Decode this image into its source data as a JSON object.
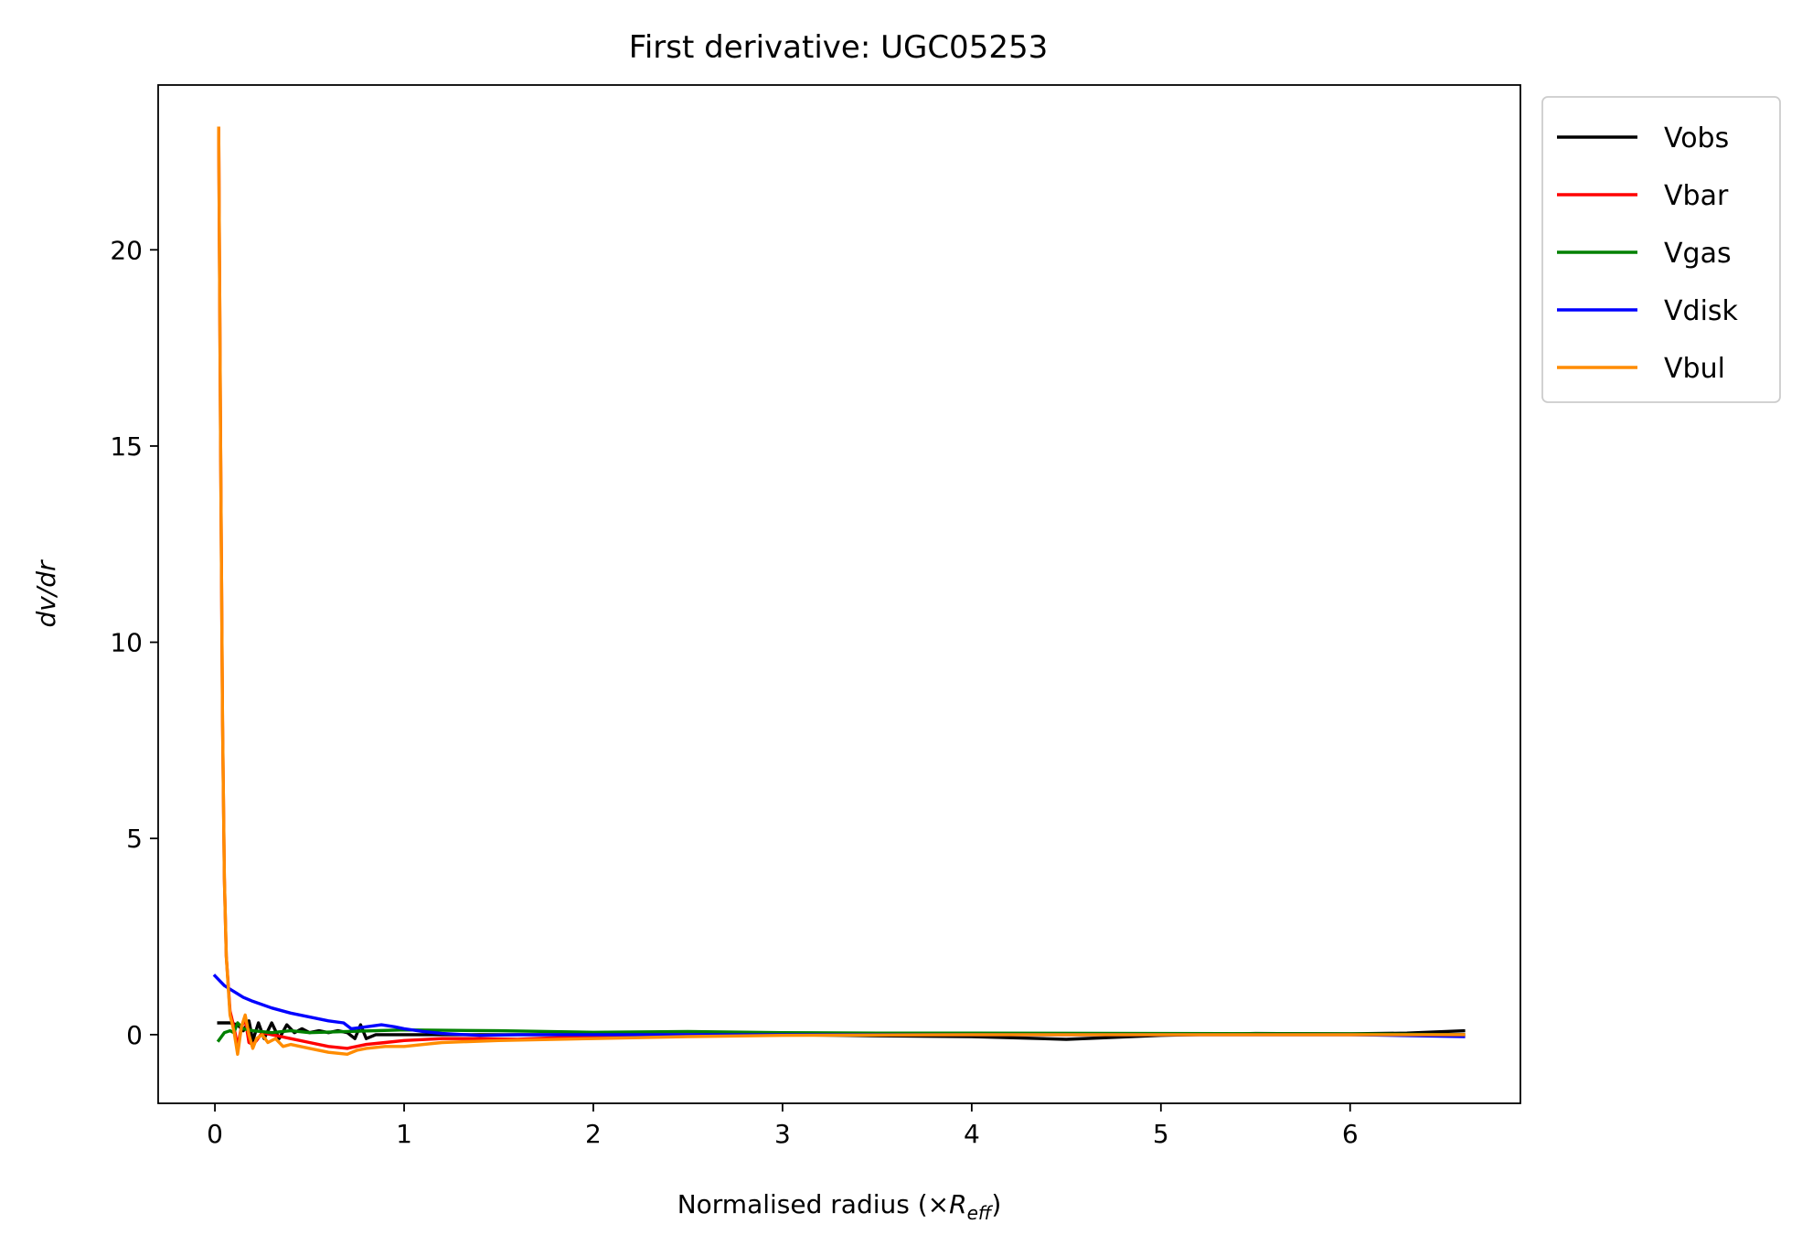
{
  "chart_data": {
    "type": "line",
    "title": "First derivative: UGC05253",
    "xlabel_main": "Normalised radius (×",
    "xlabel_sym": "R",
    "xlabel_sub": "eff",
    "xlabel_close": ")",
    "ylabel": "dv/dr",
    "xlim": [
      -0.3,
      6.9
    ],
    "ylim": [
      -1.75,
      24.2
    ],
    "xticks": [
      0,
      1,
      2,
      3,
      4,
      5,
      6
    ],
    "yticks": [
      0,
      5,
      10,
      15,
      20
    ],
    "legend_position": "outside-top-right",
    "series": [
      {
        "name": "Vobs",
        "color": "#000000",
        "x": [
          0.02,
          0.08,
          0.12,
          0.15,
          0.18,
          0.2,
          0.23,
          0.26,
          0.3,
          0.34,
          0.38,
          0.42,
          0.46,
          0.5,
          0.55,
          0.6,
          0.65,
          0.7,
          0.74,
          0.77,
          0.8,
          0.85,
          0.9,
          1.0,
          1.2,
          1.5,
          2.0,
          2.5,
          3.0,
          3.5,
          4.0,
          4.5,
          5.0,
          5.5,
          6.0,
          6.3,
          6.6
        ],
        "y": [
          0.3,
          0.3,
          0.25,
          0.1,
          0.35,
          -0.15,
          0.3,
          -0.1,
          0.3,
          -0.1,
          0.25,
          0.05,
          0.15,
          0.05,
          0.1,
          0.05,
          0.1,
          0.05,
          -0.1,
          0.25,
          -0.1,
          0.0,
          0.0,
          0.0,
          0.0,
          0.0,
          0.0,
          0.0,
          0.0,
          -0.03,
          -0.05,
          -0.12,
          -0.02,
          0.03,
          0.02,
          0.04,
          0.1
        ]
      },
      {
        "name": "Vbar",
        "color": "#ff0000",
        "x": [
          0.02,
          0.03,
          0.04,
          0.05,
          0.06,
          0.08,
          0.1,
          0.12,
          0.14,
          0.16,
          0.18,
          0.2,
          0.22,
          0.25,
          0.3,
          0.35,
          0.4,
          0.5,
          0.6,
          0.7,
          0.8,
          0.9,
          1.0,
          1.2,
          1.4,
          1.6,
          1.8,
          2.0,
          2.5,
          3.0,
          3.5,
          4.0,
          4.5,
          5.0,
          5.5,
          6.0,
          6.6
        ],
        "y": [
          23.1,
          15.0,
          8.0,
          4.0,
          2.0,
          0.6,
          0.2,
          -0.3,
          0.2,
          0.4,
          -0.2,
          -0.25,
          -0.15,
          0.05,
          0.0,
          -0.05,
          -0.1,
          -0.2,
          -0.3,
          -0.35,
          -0.25,
          -0.2,
          -0.15,
          -0.1,
          -0.1,
          -0.12,
          -0.08,
          -0.05,
          -0.02,
          -0.01,
          0.0,
          0.0,
          0.0,
          0.0,
          0.0,
          0.0,
          0.0
        ]
      },
      {
        "name": "Vgas",
        "color": "#008000",
        "x": [
          0.02,
          0.05,
          0.08,
          0.1,
          0.12,
          0.15,
          0.2,
          0.3,
          0.4,
          0.5,
          0.7,
          1.0,
          1.5,
          2.0,
          2.5,
          3.0,
          3.5,
          4.0,
          5.0,
          6.0,
          6.6
        ],
        "y": [
          -0.15,
          0.05,
          0.1,
          0.05,
          0.3,
          0.15,
          0.1,
          0.05,
          0.1,
          0.05,
          0.08,
          0.12,
          0.1,
          0.06,
          0.08,
          0.05,
          0.04,
          0.04,
          0.03,
          0.02,
          0.0
        ]
      },
      {
        "name": "Vdisk",
        "color": "#0000ff",
        "x": [
          0.0,
          0.05,
          0.1,
          0.15,
          0.2,
          0.3,
          0.4,
          0.5,
          0.6,
          0.68,
          0.72,
          0.8,
          0.88,
          0.95,
          1.0,
          1.1,
          1.2,
          1.4,
          1.6,
          1.8,
          2.0,
          2.5,
          3.0,
          4.0,
          5.0,
          6.0,
          6.6
        ],
        "y": [
          1.5,
          1.25,
          1.1,
          0.95,
          0.85,
          0.68,
          0.55,
          0.45,
          0.35,
          0.3,
          0.15,
          0.2,
          0.25,
          0.2,
          0.15,
          0.08,
          0.03,
          -0.02,
          0.0,
          0.0,
          0.0,
          0.0,
          0.0,
          0.0,
          0.0,
          0.0,
          -0.05
        ]
      },
      {
        "name": "Vbul",
        "color": "#ff8c00",
        "x": [
          0.02,
          0.03,
          0.04,
          0.05,
          0.06,
          0.08,
          0.1,
          0.12,
          0.14,
          0.16,
          0.18,
          0.2,
          0.22,
          0.25,
          0.28,
          0.32,
          0.36,
          0.4,
          0.5,
          0.6,
          0.7,
          0.75,
          0.8,
          0.9,
          1.0,
          1.2,
          1.5,
          2.0,
          2.5,
          3.0,
          4.0,
          5.0,
          6.0,
          6.6
        ],
        "y": [
          23.1,
          15.0,
          8.0,
          4.0,
          2.0,
          0.5,
          0.1,
          -0.5,
          0.2,
          0.5,
          0.0,
          -0.35,
          -0.1,
          0.0,
          -0.2,
          -0.1,
          -0.3,
          -0.25,
          -0.35,
          -0.45,
          -0.5,
          -0.4,
          -0.35,
          -0.3,
          -0.3,
          -0.2,
          -0.15,
          -0.1,
          -0.05,
          -0.02,
          0.0,
          0.0,
          0.0,
          0.0
        ]
      }
    ]
  }
}
